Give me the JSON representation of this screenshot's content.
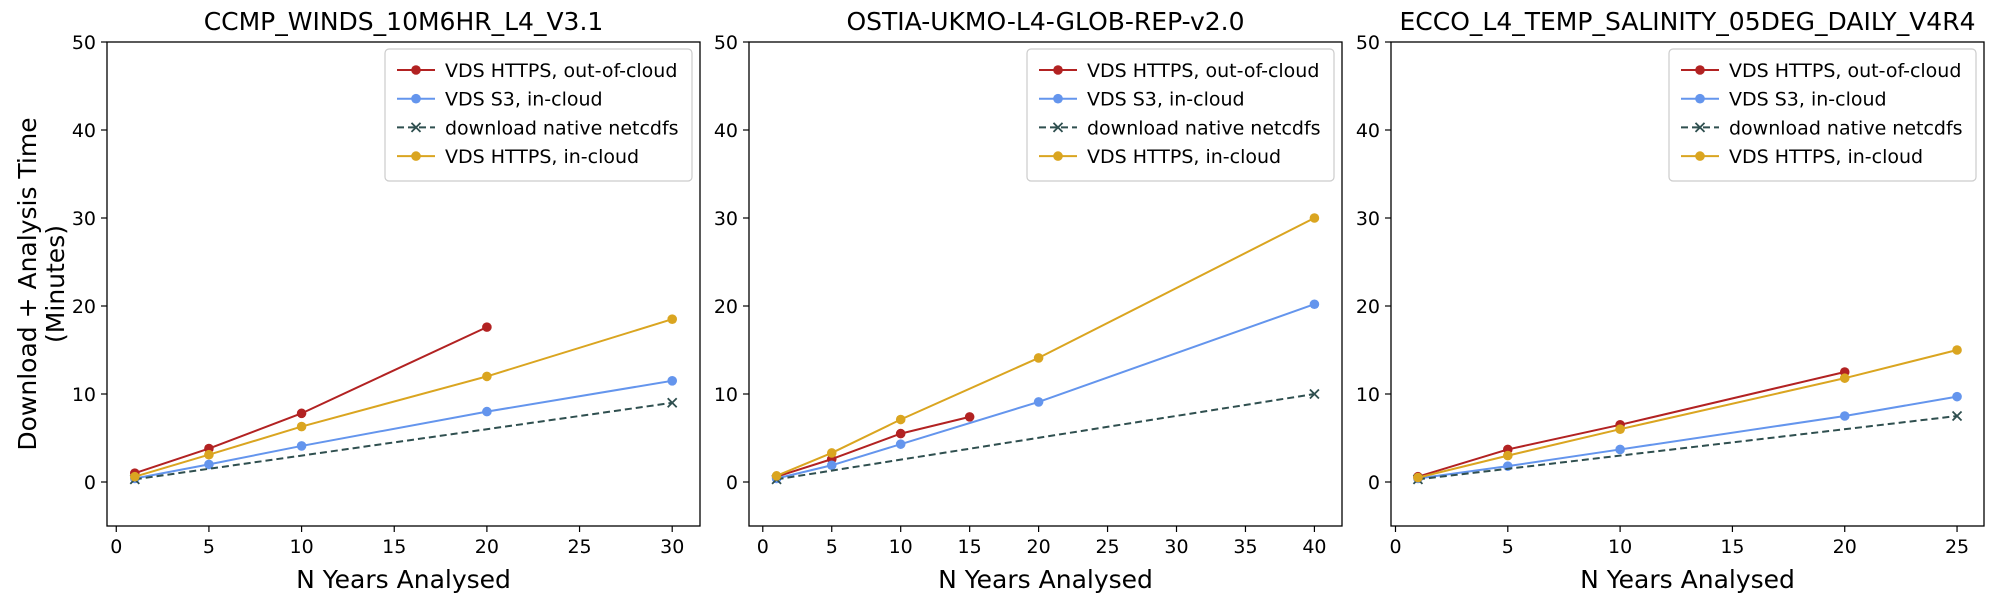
{
  "chart_data": [
    {
      "type": "line",
      "title": "CCMP_WINDS_10M6HR_L4_V3.1",
      "xlabel": "N Years Analysed",
      "ylabel": "Download + Analysis Time (Minutes)",
      "xlim": [
        -0.5,
        31.5
      ],
      "ylim": [
        -5,
        50
      ],
      "xticks": [
        0,
        5,
        10,
        15,
        20,
        25,
        30
      ],
      "yticks": [
        0,
        10,
        20,
        30,
        40,
        50
      ],
      "grid": false,
      "legend_position": "top-right",
      "series": [
        {
          "name": "VDS HTTPS, out-of-cloud",
          "color": "#b22222",
          "style": "solid",
          "marker": "circle",
          "x": [
            1,
            5,
            10,
            20
          ],
          "y": [
            1.0,
            3.8,
            7.8,
            17.6
          ]
        },
        {
          "name": "VDS S3, in-cloud",
          "color": "#6495ed",
          "style": "solid",
          "marker": "circle",
          "x": [
            1,
            5,
            10,
            20,
            30
          ],
          "y": [
            0.4,
            2.0,
            4.1,
            8.0,
            11.5
          ]
        },
        {
          "name": "download native netcdfs",
          "color": "#2f4f4f",
          "style": "dashed",
          "marker": "x",
          "x": [
            1,
            30
          ],
          "y": [
            0.3,
            9.0
          ]
        },
        {
          "name": "VDS HTTPS, in-cloud",
          "color": "#daa520",
          "style": "solid",
          "marker": "circle",
          "x": [
            1,
            5,
            10,
            20,
            30
          ],
          "y": [
            0.6,
            3.1,
            6.3,
            12.0,
            18.5
          ]
        }
      ]
    },
    {
      "type": "line",
      "title": "OSTIA-UKMO-L4-GLOB-REP-v2.0",
      "xlabel": "N Years Analysed",
      "ylabel": "",
      "xlim": [
        -1,
        42
      ],
      "ylim": [
        -5,
        50
      ],
      "xticks": [
        0,
        5,
        10,
        15,
        20,
        25,
        30,
        35,
        40
      ],
      "yticks": [
        0,
        10,
        20,
        30,
        40,
        50
      ],
      "grid": false,
      "legend_position": "top-right",
      "series": [
        {
          "name": "VDS HTTPS, out-of-cloud",
          "color": "#b22222",
          "style": "solid",
          "marker": "circle",
          "x": [
            1,
            5,
            10,
            15
          ],
          "y": [
            0.6,
            2.6,
            5.5,
            7.4
          ]
        },
        {
          "name": "VDS S3, in-cloud",
          "color": "#6495ed",
          "style": "solid",
          "marker": "circle",
          "x": [
            1,
            5,
            10,
            20,
            40
          ],
          "y": [
            0.4,
            1.9,
            4.3,
            9.1,
            20.2
          ]
        },
        {
          "name": "download native netcdfs",
          "color": "#2f4f4f",
          "style": "dashed",
          "marker": "x",
          "x": [
            1,
            40
          ],
          "y": [
            0.3,
            10.0
          ]
        },
        {
          "name": "VDS HTTPS, in-cloud",
          "color": "#daa520",
          "style": "solid",
          "marker": "circle",
          "x": [
            1,
            5,
            10,
            20,
            40
          ],
          "y": [
            0.7,
            3.3,
            7.1,
            14.1,
            30.0
          ]
        }
      ]
    },
    {
      "type": "line",
      "title": "ECCO_L4_TEMP_SALINITY_05DEG_DAILY_V4R4",
      "xlabel": "N Years Analysed",
      "ylabel": "",
      "xlim": [
        -0.2,
        26.2
      ],
      "ylim": [
        -5,
        50
      ],
      "xticks": [
        0,
        5,
        10,
        15,
        20,
        25
      ],
      "yticks": [
        0,
        10,
        20,
        30,
        40,
        50
      ],
      "grid": false,
      "legend_position": "top-right",
      "series": [
        {
          "name": "VDS HTTPS, out-of-cloud",
          "color": "#b22222",
          "style": "solid",
          "marker": "circle",
          "x": [
            1,
            5,
            10,
            20
          ],
          "y": [
            0.6,
            3.7,
            6.5,
            12.5
          ]
        },
        {
          "name": "VDS S3, in-cloud",
          "color": "#6495ed",
          "style": "solid",
          "marker": "circle",
          "x": [
            1,
            5,
            10,
            20,
            25
          ],
          "y": [
            0.4,
            1.8,
            3.7,
            7.5,
            9.7
          ]
        },
        {
          "name": "download native netcdfs",
          "color": "#2f4f4f",
          "style": "dashed",
          "marker": "x",
          "x": [
            1,
            25
          ],
          "y": [
            0.3,
            7.5
          ]
        },
        {
          "name": "VDS HTTPS, in-cloud",
          "color": "#daa520",
          "style": "solid",
          "marker": "circle",
          "x": [
            1,
            5,
            10,
            20,
            25
          ],
          "y": [
            0.5,
            3.0,
            6.0,
            11.8,
            15.0
          ]
        }
      ]
    }
  ]
}
